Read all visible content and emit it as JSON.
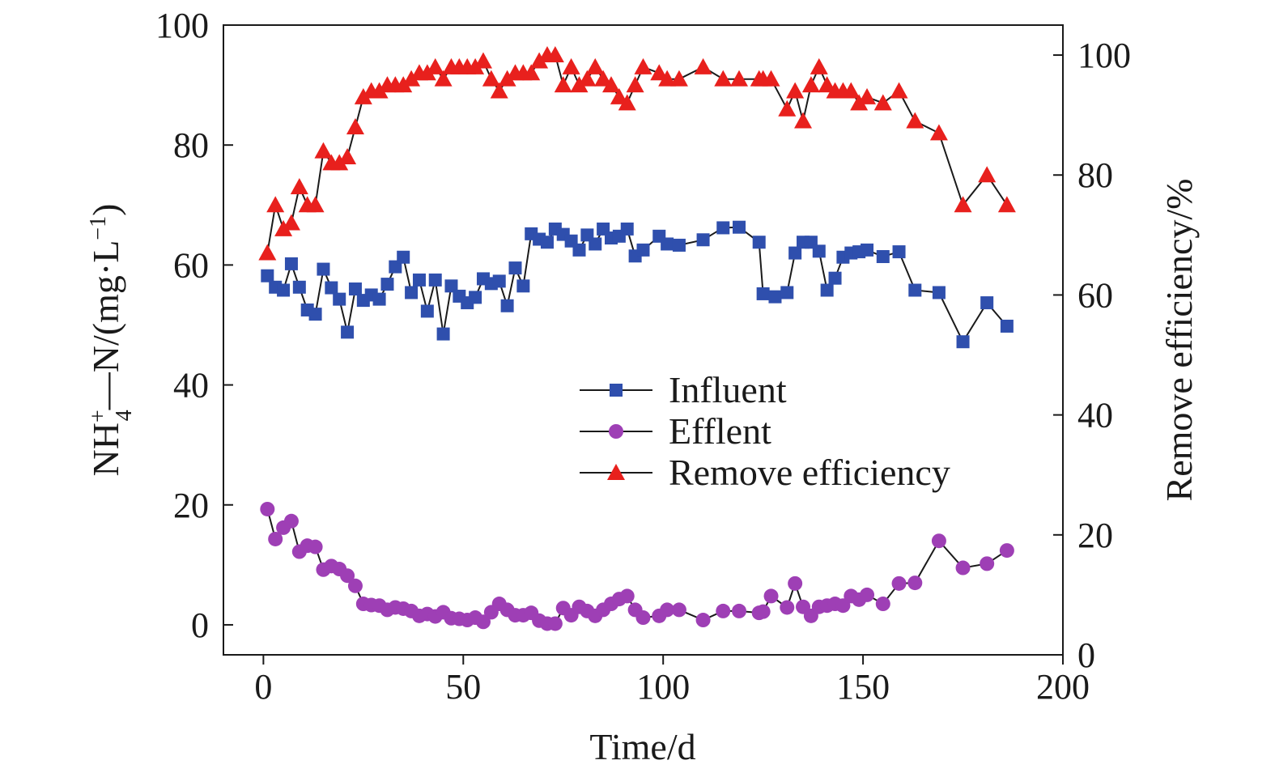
{
  "chart_data": {
    "type": "line",
    "title": "",
    "xlabel": "Time/d",
    "ylabel_left": {
      "main": "NH",
      "sup": "+",
      "sub": "4",
      "rest": "—N/(mg·L",
      "rest_sup": "−1",
      "close": ")"
    },
    "ylabel_right": "Remove efficiency/%",
    "xlim": [
      -10,
      200
    ],
    "ylim_left": [
      -5,
      100
    ],
    "ylim_right": [
      0,
      105
    ],
    "x_ticks": [
      0,
      50,
      100,
      150,
      200
    ],
    "y_left_ticks": [
      0,
      20,
      40,
      60,
      80,
      100
    ],
    "y_right_ticks": [
      0,
      20,
      40,
      60,
      80,
      100
    ],
    "legend_position": "center-right",
    "series": [
      {
        "name": "Influent",
        "axis": "left",
        "marker": "square",
        "color": "#2f4fad",
        "x": [
          1,
          3,
          5,
          7,
          9,
          11,
          13,
          15,
          17,
          19,
          21,
          23,
          25,
          27,
          29,
          31,
          33,
          35,
          37,
          39,
          41,
          43,
          45,
          47,
          49,
          51,
          53,
          55,
          57,
          59,
          61,
          63,
          65,
          67,
          69,
          71,
          73,
          75,
          77,
          79,
          81,
          83,
          85,
          87,
          89,
          91,
          93,
          95,
          99,
          101,
          104,
          110,
          115,
          119,
          124,
          125,
          128,
          131,
          133,
          135,
          137,
          139,
          141,
          143,
          145,
          147,
          149,
          151,
          155,
          159,
          163,
          169,
          175,
          181,
          186
        ],
        "values": [
          58.2,
          56.3,
          55.8,
          60.2,
          56.3,
          52.5,
          51.8,
          59.3,
          56.2,
          54.3,
          48.8,
          56.0,
          54.1,
          55.0,
          54.3,
          56.8,
          59.7,
          61.3,
          55.4,
          57.5,
          52.3,
          57.5,
          48.5,
          56.5,
          54.8,
          53.7,
          54.6,
          57.7,
          56.9,
          57.3,
          53.2,
          59.5,
          56.5,
          65.2,
          64.3,
          63.8,
          66.0,
          65.1,
          64.0,
          62.5,
          65.0,
          63.5,
          66.0,
          64.5,
          64.8,
          66.0,
          61.5,
          62.5,
          64.8,
          63.5,
          63.3,
          64.2,
          66.2,
          66.3,
          63.8,
          55.2,
          54.7,
          55.4,
          62.0,
          63.8,
          63.8,
          62.3,
          55.8,
          57.8,
          61.3,
          62.0,
          62.2,
          62.5,
          61.4,
          62.2,
          55.8,
          55.4,
          47.2,
          53.7,
          49.8
        ]
      },
      {
        "name": "Efflent",
        "axis": "left",
        "marker": "circle",
        "color": "#9e3fb5",
        "x": [
          1,
          3,
          5,
          7,
          9,
          11,
          13,
          15,
          17,
          19,
          21,
          23,
          25,
          27,
          29,
          31,
          33,
          35,
          37,
          39,
          41,
          43,
          45,
          47,
          49,
          51,
          53,
          55,
          57,
          59,
          61,
          63,
          65,
          67,
          69,
          71,
          73,
          75,
          77,
          79,
          81,
          83,
          85,
          87,
          89,
          91,
          93,
          95,
          99,
          101,
          104,
          110,
          115,
          119,
          124,
          125,
          127,
          131,
          133,
          135,
          137,
          139,
          141,
          143,
          145,
          147,
          149,
          151,
          155,
          159,
          163,
          169,
          175,
          181,
          186
        ],
        "values": [
          19.3,
          14.3,
          16.2,
          17.3,
          12.2,
          13.2,
          13.0,
          9.2,
          9.8,
          9.3,
          8.2,
          6.5,
          3.5,
          3.3,
          3.2,
          2.5,
          2.9,
          2.7,
          2.3,
          1.5,
          1.8,
          1.4,
          2.1,
          1.1,
          1.0,
          0.8,
          1.2,
          0.5,
          2.1,
          3.5,
          2.5,
          1.6,
          1.6,
          2.0,
          0.7,
          0.2,
          0.2,
          2.8,
          1.6,
          3.0,
          2.3,
          1.5,
          2.5,
          3.5,
          4.3,
          4.8,
          2.5,
          1.2,
          1.5,
          2.5,
          2.5,
          0.8,
          2.3,
          2.3,
          2.0,
          2.2,
          4.8,
          2.9,
          6.9,
          3.0,
          1.5,
          3.0,
          3.2,
          3.5,
          3.2,
          4.8,
          4.2,
          5.0,
          3.5,
          6.9,
          7.0,
          14.0,
          9.5,
          10.2,
          12.4
        ]
      },
      {
        "name": "Remove efficiency",
        "axis": "right",
        "marker": "triangle",
        "color": "#e8201d",
        "x": [
          1,
          3,
          5,
          7,
          9,
          11,
          13,
          15,
          17,
          19,
          21,
          23,
          25,
          27,
          29,
          31,
          33,
          35,
          37,
          39,
          41,
          43,
          45,
          47,
          49,
          51,
          53,
          55,
          57,
          59,
          61,
          63,
          65,
          67,
          69,
          71,
          73,
          75,
          77,
          79,
          81,
          83,
          85,
          87,
          89,
          91,
          93,
          95,
          99,
          101,
          104,
          110,
          115,
          119,
          124,
          125,
          127,
          131,
          133,
          135,
          137,
          139,
          141,
          143,
          145,
          147,
          149,
          151,
          155,
          159,
          163,
          169,
          175,
          181,
          186
        ],
        "values": [
          67,
          75,
          71,
          72,
          78,
          75,
          75,
          84,
          82,
          82,
          83,
          88,
          93,
          94,
          94,
          95,
          95,
          95,
          96,
          97,
          97,
          98,
          96,
          98,
          98,
          98,
          98,
          99,
          96,
          94,
          96,
          97,
          97,
          97,
          99,
          100,
          100,
          95,
          98,
          95,
          96,
          98,
          96,
          95,
          93,
          92,
          95,
          98,
          97,
          96,
          96,
          98,
          96,
          96,
          96,
          96,
          96,
          91,
          94,
          89,
          95,
          98,
          95,
          94,
          94,
          94,
          92,
          93,
          92,
          94,
          89,
          87,
          75,
          80,
          75
        ]
      }
    ]
  }
}
